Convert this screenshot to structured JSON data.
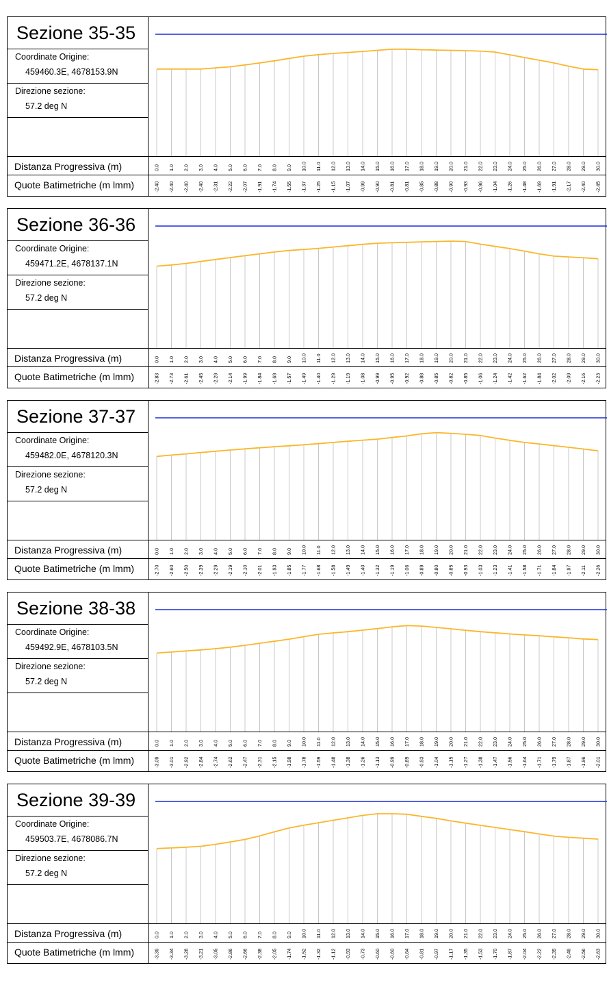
{
  "row_labels": {
    "distance": "Distanza Progressiva (m)",
    "depth": "Quote Batimetriche (m lmm)"
  },
  "colors": {
    "water_line": "#1e2fd6",
    "profile": "#fbb62a",
    "vertical": "#c8c8c8"
  },
  "sections": [
    {
      "title": "Sezione 35-35",
      "origin_label": "Coordinate Origine:",
      "origin_value": "459460.3E, 4678153.9N",
      "direction_label": "Direzione sezione:",
      "direction_value": "57.2 deg N",
      "chart_data": {
        "type": "line",
        "x": [
          0,
          1,
          2,
          3,
          4,
          5,
          6,
          7,
          8,
          9,
          10,
          11,
          12,
          13,
          14,
          15,
          16,
          17,
          18,
          19,
          20,
          21,
          22,
          23,
          24,
          25,
          26,
          27,
          28,
          29,
          30
        ],
        "x_labels": [
          "0.0",
          "1.0",
          "2.0",
          "3.0",
          "4.0",
          "5.0",
          "6.0",
          "7.0",
          "8.0",
          "9.0",
          "10.0",
          "11.0",
          "12.0",
          "13.0",
          "14.0",
          "15.0",
          "16.0",
          "17.0",
          "18.0",
          "19.0",
          "20.0",
          "21.0",
          "22.0",
          "23.0",
          "24.0",
          "25.0",
          "26.0",
          "27.0",
          "28.0",
          "29.0",
          "30.0"
        ],
        "y": [
          -2.4,
          -2.4,
          -2.4,
          -2.4,
          -2.31,
          -2.22,
          -2.07,
          -1.91,
          -1.74,
          -1.55,
          -1.37,
          -1.25,
          -1.15,
          -1.07,
          -0.99,
          -0.9,
          -0.81,
          -0.81,
          -0.85,
          -0.88,
          -0.9,
          -0.93,
          -0.96,
          -1.04,
          -1.26,
          -1.48,
          -1.69,
          -1.91,
          -2.17,
          -2.4,
          -2.45
        ],
        "y_labels": [
          "-2.40",
          "-2.40",
          "-2.40",
          "-2.40",
          "-2.31",
          "-2.22",
          "-2.07",
          "-1.91",
          "-1.74",
          "-1.55",
          "-1.37",
          "-1.25",
          "-1.15",
          "-1.07",
          "-0.99",
          "-0.90",
          "-0.81",
          "-0.81",
          "-0.85",
          "-0.88",
          "-0.90",
          "-0.93",
          "-0.96",
          "-1.04",
          "-1.26",
          "-1.48",
          "-1.69",
          "-1.91",
          "-2.17",
          "-2.40",
          "-2.45"
        ]
      }
    },
    {
      "title": "Sezione 36-36",
      "origin_label": "Coordinate Origine:",
      "origin_value": "459471.2E, 4678137.1N",
      "direction_label": "Direzione sezione:",
      "direction_value": "57.2 deg N",
      "chart_data": {
        "type": "line",
        "x": [
          0,
          1,
          2,
          3,
          4,
          5,
          6,
          7,
          8,
          9,
          10,
          11,
          12,
          13,
          14,
          15,
          16,
          17,
          18,
          19,
          20,
          21,
          22,
          23,
          24,
          25,
          26,
          27,
          28,
          29,
          30
        ],
        "x_labels": [
          "0.0",
          "1.0",
          "2.0",
          "3.0",
          "4.0",
          "5.0",
          "6.0",
          "7.0",
          "8.0",
          "9.0",
          "10.0",
          "11.0",
          "12.0",
          "13.0",
          "14.0",
          "15.0",
          "16.0",
          "17.0",
          "18.0",
          "19.0",
          "20.0",
          "21.0",
          "22.0",
          "23.0",
          "24.0",
          "25.0",
          "26.0",
          "27.0",
          "28.0",
          "29.0",
          "30.0"
        ],
        "y": [
          -2.83,
          -2.73,
          -2.61,
          -2.45,
          -2.29,
          -2.14,
          -1.99,
          -1.84,
          -1.69,
          -1.57,
          -1.49,
          -1.4,
          -1.29,
          -1.19,
          -1.08,
          -0.99,
          -0.95,
          -0.92,
          -0.88,
          -0.85,
          -0.82,
          -0.85,
          -1.06,
          -1.24,
          -1.42,
          -1.62,
          -1.84,
          -2.02,
          -2.09,
          -2.16,
          -2.23
        ],
        "y_labels": [
          "-2.83",
          "-2.73",
          "-2.61",
          "-2.45",
          "-2.29",
          "-2.14",
          "-1.99",
          "-1.84",
          "-1.69",
          "-1.57",
          "-1.49",
          "-1.40",
          "-1.29",
          "-1.19",
          "-1.08",
          "-0.99",
          "-0.95",
          "-0.92",
          "-0.88",
          "-0.85",
          "-0.82",
          "-0.85",
          "-1.06",
          "-1.24",
          "-1.42",
          "-1.62",
          "-1.84",
          "-2.02",
          "-2.09",
          "-2.16",
          "-2.23"
        ]
      }
    },
    {
      "title": "Sezione 37-37",
      "origin_label": "Coordinate Origine:",
      "origin_value": "459482.0E, 4678120.3N",
      "direction_label": "Direzione sezione:",
      "direction_value": "57.2 deg N",
      "chart_data": {
        "type": "line",
        "x": [
          0,
          1,
          2,
          3,
          4,
          5,
          6,
          7,
          8,
          9,
          10,
          11,
          12,
          13,
          14,
          15,
          16,
          17,
          18,
          19,
          20,
          21,
          22,
          23,
          24,
          25,
          26,
          27,
          28,
          29,
          30
        ],
        "x_labels": [
          "0.0",
          "1.0",
          "2.0",
          "3.0",
          "4.0",
          "5.0",
          "6.0",
          "7.0",
          "8.0",
          "9.0",
          "10.0",
          "11.0",
          "12.0",
          "13.0",
          "14.0",
          "15.0",
          "16.0",
          "17.0",
          "18.0",
          "19.0",
          "20.0",
          "21.0",
          "22.0",
          "23.0",
          "24.0",
          "25.0",
          "26.0",
          "27.0",
          "28.0",
          "29.0",
          "30.0"
        ],
        "y": [
          -2.7,
          -2.6,
          -2.5,
          -2.39,
          -2.29,
          -2.19,
          -2.1,
          -2.01,
          -1.93,
          -1.85,
          -1.77,
          -1.68,
          -1.58,
          -1.49,
          -1.4,
          -1.32,
          -1.19,
          -1.06,
          -0.89,
          -0.8,
          -0.85,
          -0.93,
          -1.03,
          -1.23,
          -1.41,
          -1.58,
          -1.71,
          -1.84,
          -1.97,
          -2.11,
          -2.26
        ],
        "y_labels": [
          "-2.70",
          "-2.60",
          "-2.50",
          "-2.39",
          "-2.29",
          "-2.19",
          "-2.10",
          "-2.01",
          "-1.93",
          "-1.85",
          "-1.77",
          "-1.68",
          "-1.58",
          "-1.49",
          "-1.40",
          "-1.32",
          "-1.19",
          "-1.06",
          "-0.89",
          "-0.80",
          "-0.85",
          "-0.93",
          "-1.03",
          "-1.23",
          "-1.41",
          "-1.58",
          "-1.71",
          "-1.84",
          "-1.97",
          "-2.11",
          "-2.26"
        ]
      }
    },
    {
      "title": "Sezione 38-38",
      "origin_label": "Coordinate Origine:",
      "origin_value": "459492.9E, 4678103.5N",
      "direction_label": "Direzione sezione:",
      "direction_value": "57.2 deg N",
      "chart_data": {
        "type": "line",
        "x": [
          0,
          1,
          2,
          3,
          4,
          5,
          6,
          7,
          8,
          9,
          10,
          11,
          12,
          13,
          14,
          15,
          16,
          17,
          18,
          19,
          20,
          21,
          22,
          23,
          24,
          25,
          26,
          27,
          28,
          29,
          30
        ],
        "x_labels": [
          "0.0",
          "1.0",
          "2.0",
          "3.0",
          "4.0",
          "5.0",
          "6.0",
          "7.0",
          "8.0",
          "9.0",
          "10.0",
          "11.0",
          "12.0",
          "13.0",
          "14.0",
          "15.0",
          "16.0",
          "17.0",
          "18.0",
          "19.0",
          "20.0",
          "21.0",
          "22.0",
          "23.0",
          "24.0",
          "25.0",
          "26.0",
          "27.0",
          "28.0",
          "29.0",
          "30.0"
        ],
        "y": [
          -3.09,
          -3.01,
          -2.92,
          -2.84,
          -2.74,
          -2.62,
          -2.47,
          -2.31,
          -2.15,
          -1.98,
          -1.78,
          -1.59,
          -1.48,
          -1.38,
          -1.26,
          -1.13,
          -0.99,
          -0.89,
          -0.93,
          -1.04,
          -1.15,
          -1.27,
          -1.38,
          -1.47,
          -1.56,
          -1.64,
          -1.71,
          -1.79,
          -1.87,
          -1.96,
          -2.01
        ],
        "y_labels": [
          "-3.09",
          "-3.01",
          "-2.92",
          "-2.84",
          "-2.74",
          "-2.62",
          "-2.47",
          "-2.31",
          "-2.15",
          "-1.98",
          "-1.78",
          "-1.59",
          "-1.48",
          "-1.38",
          "-1.26",
          "-1.13",
          "-0.99",
          "-0.89",
          "-0.93",
          "-1.04",
          "-1.15",
          "-1.27",
          "-1.38",
          "-1.47",
          "-1.56",
          "-1.64",
          "-1.71",
          "-1.79",
          "-1.87",
          "-1.96",
          "-2.01"
        ]
      }
    },
    {
      "title": "Sezione 39-39",
      "origin_label": "Coordinate Origine:",
      "origin_value": "459503.7E, 4678086.7N",
      "direction_label": "Direzione sezione:",
      "direction_value": "57.2 deg N",
      "chart_data": {
        "type": "line",
        "x": [
          0,
          1,
          2,
          3,
          4,
          5,
          6,
          7,
          8,
          9,
          10,
          11,
          12,
          13,
          14,
          15,
          16,
          17,
          18,
          19,
          20,
          21,
          22,
          23,
          24,
          25,
          26,
          27,
          28,
          29,
          30
        ],
        "x_labels": [
          "0.0",
          "1.0",
          "2.0",
          "3.0",
          "4.0",
          "5.0",
          "6.0",
          "7.0",
          "8.0",
          "9.0",
          "10.0",
          "11.0",
          "12.0",
          "13.0",
          "14.0",
          "15.0",
          "16.0",
          "17.0",
          "18.0",
          "19.0",
          "20.0",
          "21.0",
          "22.0",
          "23.0",
          "24.0",
          "25.0",
          "26.0",
          "27.0",
          "28.0",
          "29.0",
          "30.0"
        ],
        "y": [
          -3.39,
          -3.34,
          -3.28,
          -3.21,
          -3.05,
          -2.86,
          -2.66,
          -2.38,
          -2.05,
          -1.74,
          -1.52,
          -1.32,
          -1.12,
          -0.93,
          -0.73,
          -0.6,
          -0.6,
          -0.64,
          -0.81,
          -0.97,
          -1.17,
          -1.35,
          -1.53,
          -1.7,
          -1.87,
          -2.04,
          -2.22,
          -2.39,
          -2.49,
          -2.56,
          -2.63
        ],
        "y_labels": [
          "-3.39",
          "-3.34",
          "-3.28",
          "-3.21",
          "-3.05",
          "-2.86",
          "-2.66",
          "-2.38",
          "-2.05",
          "-1.74",
          "-1.52",
          "-1.32",
          "-1.12",
          "-0.93",
          "-0.73",
          "-0.60",
          "-0.60",
          "-0.64",
          "-0.81",
          "-0.97",
          "-1.17",
          "-1.35",
          "-1.53",
          "-1.70",
          "-1.87",
          "-2.04",
          "-2.22",
          "-2.39",
          "-2.49",
          "-2.56",
          "-2.63"
        ]
      }
    }
  ]
}
